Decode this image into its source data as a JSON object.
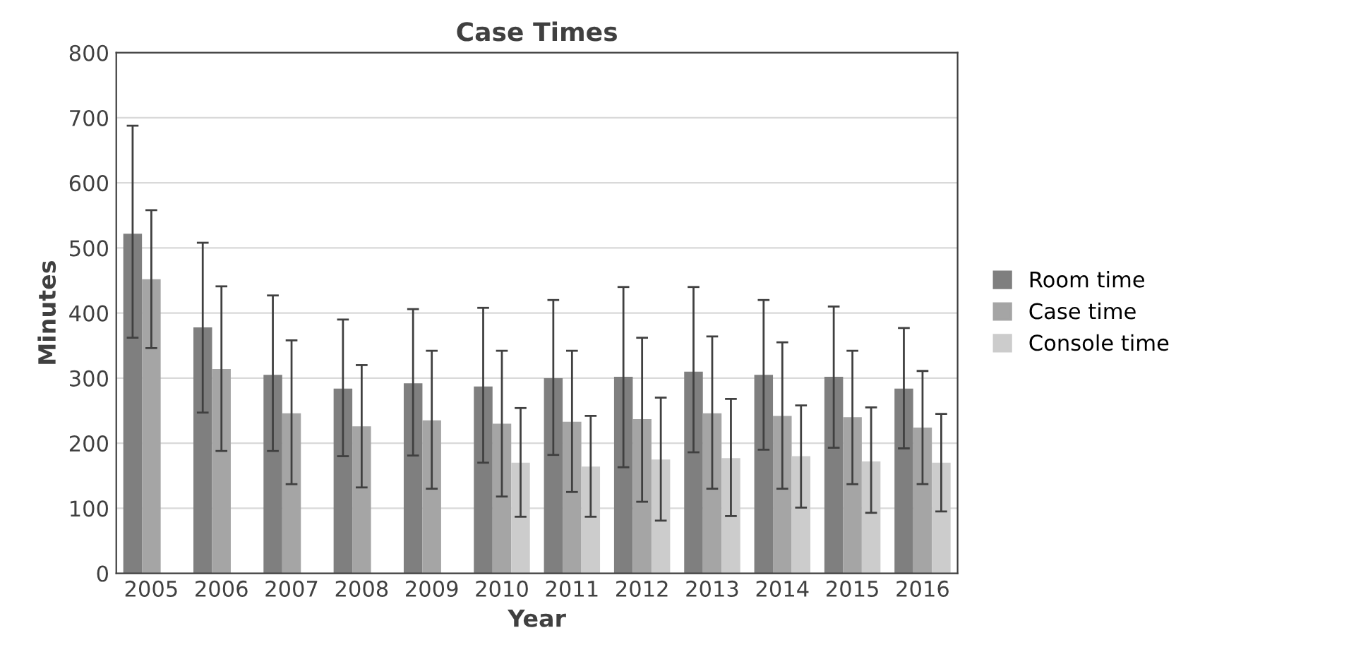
{
  "chart_data": {
    "type": "bar",
    "title": "Case Times",
    "xlabel": "Year",
    "ylabel": "Minutes",
    "categories": [
      "2005",
      "2006",
      "2007",
      "2008",
      "2009",
      "2010",
      "2011",
      "2012",
      "2013",
      "2014",
      "2015",
      "2016"
    ],
    "series": [
      {
        "name": "Room time",
        "color": "#7f7f7f",
        "values": [
          522,
          378,
          305,
          284,
          292,
          287,
          300,
          302,
          310,
          305,
          302,
          284
        ],
        "errors": [
          [
            362,
            688
          ],
          [
            247,
            508
          ],
          [
            188,
            427
          ],
          [
            180,
            390
          ],
          [
            181,
            406
          ],
          [
            170,
            408
          ],
          [
            182,
            420
          ],
          [
            163,
            440
          ],
          [
            186,
            440
          ],
          [
            190,
            420
          ],
          [
            193,
            410
          ],
          [
            192,
            377
          ]
        ]
      },
      {
        "name": "Case time",
        "color": "#a5a5a5",
        "values": [
          452,
          314,
          246,
          226,
          235,
          230,
          233,
          237,
          246,
          242,
          240,
          224
        ],
        "errors": [
          [
            346,
            558
          ],
          [
            188,
            441
          ],
          [
            137,
            358
          ],
          [
            132,
            320
          ],
          [
            130,
            342
          ],
          [
            118,
            342
          ],
          [
            125,
            342
          ],
          [
            110,
            362
          ],
          [
            130,
            364
          ],
          [
            130,
            355
          ],
          [
            137,
            342
          ],
          [
            137,
            311
          ]
        ]
      },
      {
        "name": "Console time",
        "color": "#cccccc",
        "values": [
          null,
          null,
          null,
          null,
          null,
          170,
          164,
          175,
          177,
          180,
          172,
          170
        ],
        "errors": [
          null,
          null,
          null,
          null,
          null,
          [
            87,
            254
          ],
          [
            87,
            242
          ],
          [
            81,
            270
          ],
          [
            88,
            268
          ],
          [
            101,
            258
          ],
          [
            93,
            255
          ],
          [
            95,
            245
          ]
        ]
      }
    ],
    "ylim": [
      0,
      800
    ],
    "yticks": [
      0,
      100,
      200,
      300,
      400,
      500,
      600,
      700,
      800
    ],
    "grid": "y",
    "legend": "right"
  }
}
